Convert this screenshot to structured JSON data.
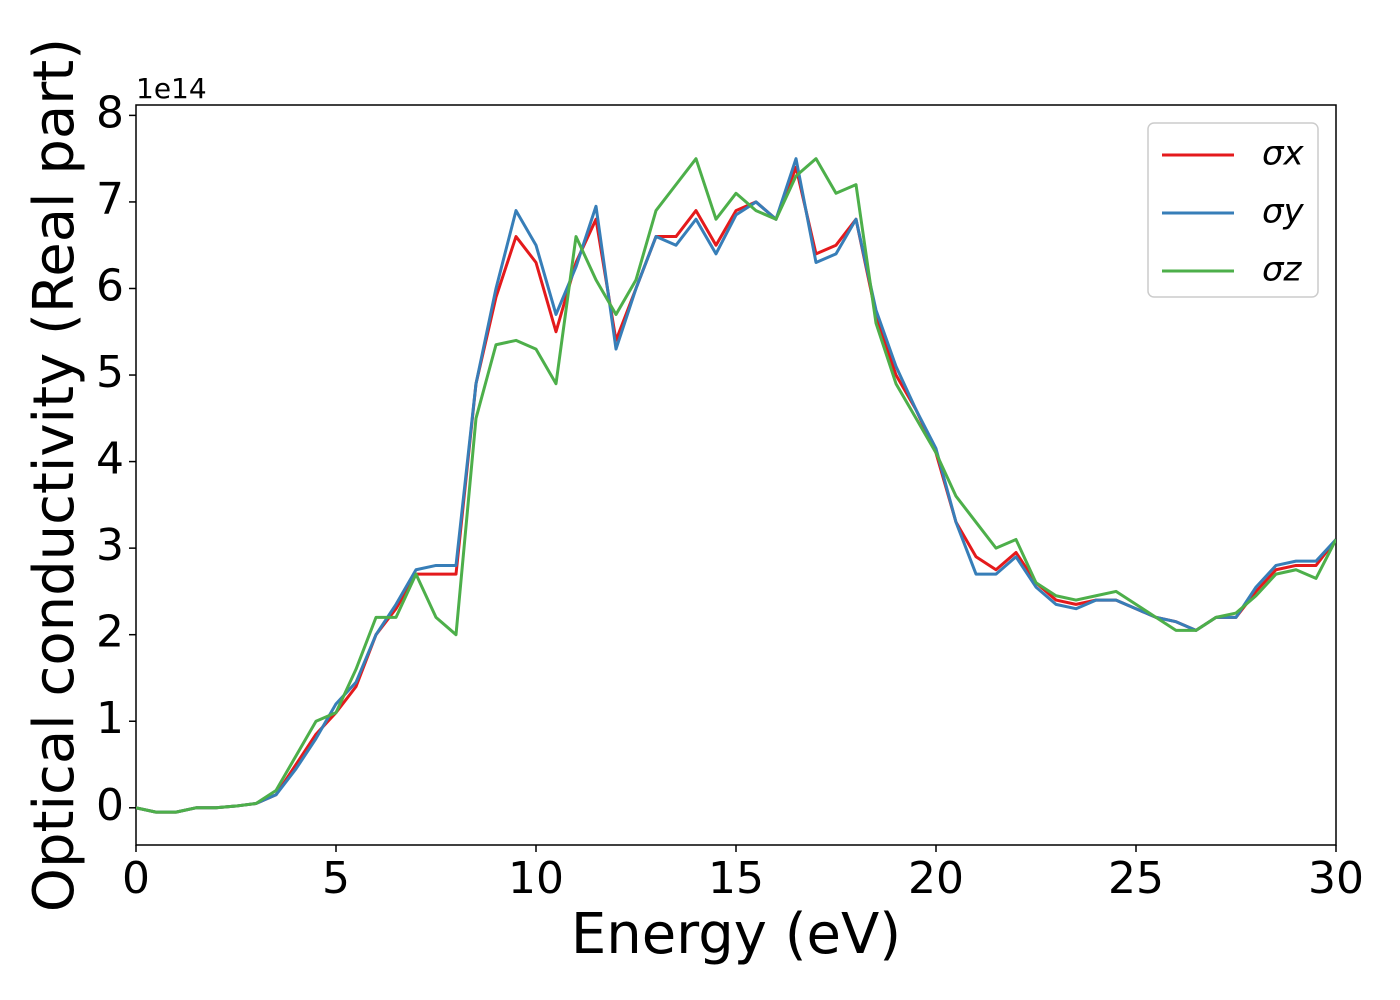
{
  "chart_data": {
    "type": "line",
    "xlabel": "Energy (eV)",
    "ylabel": "Optical conductivity (Real part)",
    "y_offset_label": "1e14",
    "x": [
      0,
      0.5,
      1,
      1.5,
      2,
      2.5,
      3,
      3.5,
      4,
      4.5,
      5,
      5.5,
      6,
      6.5,
      7,
      7.5,
      8,
      8.5,
      9,
      9.5,
      10,
      10.5,
      11,
      11.5,
      12,
      12.5,
      13,
      13.5,
      14,
      14.5,
      15,
      15.5,
      16,
      16.5,
      17,
      17.5,
      18,
      18.5,
      19,
      19.5,
      20,
      20.5,
      21,
      21.5,
      22,
      22.5,
      23,
      23.5,
      24,
      24.5,
      25,
      25.5,
      26,
      26.5,
      27,
      27.5,
      28,
      28.5,
      29,
      29.5,
      30
    ],
    "series": [
      {
        "name": "σx",
        "color": "#e41a1c",
        "values": [
          0,
          -0.05,
          -0.05,
          0,
          0,
          0.02,
          0.05,
          0.15,
          0.5,
          0.85,
          1.1,
          1.4,
          2.0,
          2.3,
          2.7,
          2.7,
          2.7,
          4.9,
          5.9,
          6.6,
          6.3,
          5.5,
          6.3,
          6.8,
          5.4,
          6.0,
          6.6,
          6.6,
          6.9,
          6.5,
          6.9,
          7.0,
          6.8,
          7.4,
          6.4,
          6.5,
          6.8,
          5.7,
          5.0,
          4.6,
          4.1,
          3.3,
          2.9,
          2.75,
          2.95,
          2.6,
          2.4,
          2.35,
          2.4,
          2.4,
          2.3,
          2.2,
          2.15,
          2.05,
          2.2,
          2.2,
          2.5,
          2.75,
          2.8,
          2.8,
          3.1
        ]
      },
      {
        "name": "σy",
        "color": "#377eb8",
        "values": [
          0,
          -0.05,
          -0.05,
          0,
          0,
          0.02,
          0.05,
          0.15,
          0.45,
          0.8,
          1.2,
          1.45,
          2.0,
          2.35,
          2.75,
          2.8,
          2.8,
          4.9,
          6.0,
          6.9,
          6.5,
          5.7,
          6.25,
          6.95,
          5.3,
          6.0,
          6.6,
          6.5,
          6.8,
          6.4,
          6.85,
          7.0,
          6.8,
          7.5,
          6.3,
          6.4,
          6.8,
          5.75,
          5.1,
          4.6,
          4.15,
          3.3,
          2.7,
          2.7,
          2.9,
          2.55,
          2.35,
          2.3,
          2.4,
          2.4,
          2.3,
          2.2,
          2.15,
          2.05,
          2.2,
          2.2,
          2.55,
          2.8,
          2.85,
          2.85,
          3.1
        ]
      },
      {
        "name": "σz",
        "color": "#4daf4a",
        "values": [
          0,
          -0.05,
          -0.05,
          0,
          0,
          0.02,
          0.05,
          0.2,
          0.6,
          1.0,
          1.1,
          1.6,
          2.2,
          2.2,
          2.7,
          2.2,
          2.0,
          4.5,
          5.35,
          5.4,
          5.3,
          4.9,
          6.6,
          6.1,
          5.7,
          6.1,
          6.9,
          7.2,
          7.5,
          6.8,
          7.1,
          6.9,
          6.8,
          7.3,
          7.5,
          7.1,
          7.2,
          5.6,
          4.9,
          4.5,
          4.1,
          3.6,
          3.3,
          3.0,
          3.1,
          2.6,
          2.45,
          2.4,
          2.45,
          2.5,
          2.35,
          2.2,
          2.05,
          2.05,
          2.2,
          2.25,
          2.45,
          2.7,
          2.75,
          2.65,
          3.1
        ]
      }
    ],
    "xlim": [
      0,
      30
    ],
    "xticks": [
      0,
      5,
      10,
      15,
      20,
      25,
      30
    ],
    "ylim": [
      -0.43,
      8.12
    ],
    "yticks": [
      0,
      1,
      2,
      3,
      4,
      5,
      6,
      7,
      8
    ],
    "grid": false,
    "legend": "upper right"
  }
}
